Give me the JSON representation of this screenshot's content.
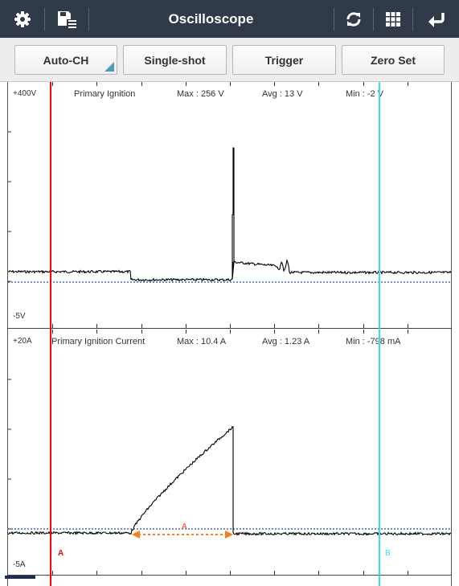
{
  "toolbar": {
    "title": "Oscilloscope",
    "icons": [
      "gear-icon",
      "save-list-icon",
      "refresh-icon",
      "grid-icon",
      "back-icon"
    ],
    "bg_color": "#303a48"
  },
  "buttons": {
    "auto_ch": "Auto-CH",
    "single_shot": "Single-shot",
    "trigger": "Trigger",
    "zero_set": "Zero Set"
  },
  "channels": [
    {
      "scale_top": "+400V",
      "name": "Primary Ignition",
      "max": "Max : 256 V",
      "avg": "Avg : 13 V",
      "min": "Min : -2 V",
      "scale_bottom": "-5V",
      "waveform_color": "#000000"
    },
    {
      "scale_top": "+20A",
      "name": "Primary Ignition Current",
      "max": "Max : 10.4 A",
      "avg": "Avg : 1.23 A",
      "min": "Min : -798 mA",
      "scale_bottom": "-5A",
      "waveform_color": "#000000"
    }
  ],
  "cursors": {
    "a_label": "A",
    "b_label": "B",
    "interval_label": "A",
    "a_color": "#ff0000",
    "b_color": "#33e0f0",
    "interval_color": "#ff7a1a"
  }
}
